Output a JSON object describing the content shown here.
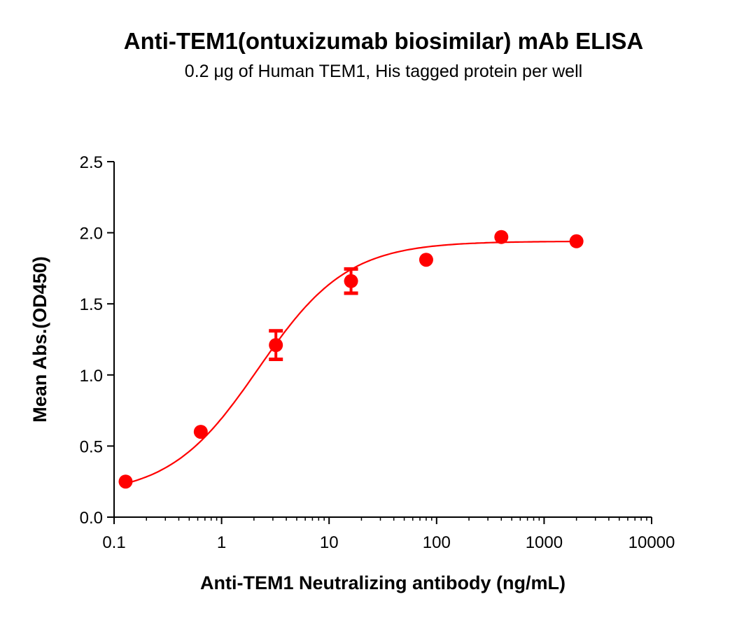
{
  "chart_data": {
    "type": "scatter",
    "title": "Anti-TEM1(ontuxizumab biosimilar) mAb ELISA",
    "subtitle": "0.2 μg of Human TEM1, His tagged protein per well",
    "xlabel": "Anti-TEM1 Neutralizing antibody (ng/mL)",
    "ylabel": "Mean Abs.(OD450)",
    "xscale": "log",
    "xlim": [
      0.1,
      10000
    ],
    "ylim": [
      0,
      2.5
    ],
    "xticks": [
      "0.1",
      "1",
      "10",
      "100",
      "1000",
      "10000"
    ],
    "xtick_values": [
      0.1,
      1,
      10,
      100,
      1000,
      10000
    ],
    "yticks": [
      "0.0",
      "0.5",
      "1.0",
      "1.5",
      "2.0",
      "2.5"
    ],
    "ytick_values": [
      0,
      0.5,
      1.0,
      1.5,
      2.0,
      2.5
    ],
    "grid": false,
    "color": "#ff0000",
    "points": [
      {
        "x": 0.128,
        "y": 0.25,
        "err": 0
      },
      {
        "x": 0.64,
        "y": 0.6,
        "err": 0
      },
      {
        "x": 3.2,
        "y": 1.21,
        "err": 0.1
      },
      {
        "x": 16,
        "y": 1.66,
        "err": 0.085
      },
      {
        "x": 80,
        "y": 1.81,
        "err": 0
      },
      {
        "x": 400,
        "y": 1.97,
        "err": 0
      },
      {
        "x": 2000,
        "y": 1.94,
        "err": 0
      }
    ],
    "fit": {
      "model": "4PL",
      "bottom": 0.15,
      "top": 1.94,
      "ec50": 2.2,
      "hill": 1.05
    }
  }
}
